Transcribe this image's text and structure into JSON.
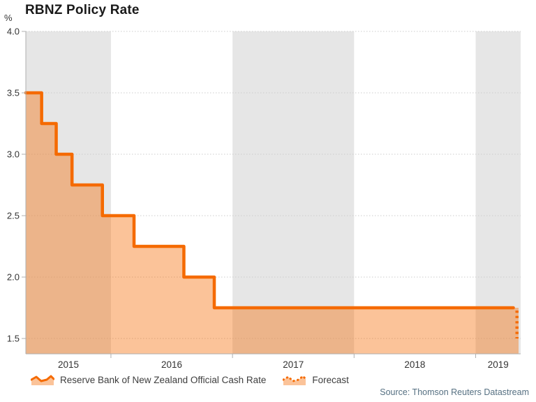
{
  "chart_data": {
    "type": "area",
    "title": "RBNZ Policy Rate",
    "y_unit_label": "%",
    "xlim": [
      2015.3,
      2019.37
    ],
    "ylim": [
      1.375,
      4.0
    ],
    "y_ticks": [
      "4.0",
      "3.5",
      "3.0",
      "2.5",
      "2.0",
      "1.5"
    ],
    "x_ticks": [
      "2015",
      "2016",
      "2017",
      "2018",
      "2019"
    ],
    "shaded_years": [
      2015,
      2017,
      2019
    ],
    "grid": "dotted-horizontal",
    "legend_position": "bottom",
    "series": [
      {
        "name": "Reserve Bank of New Zealand Official Cash Rate",
        "style": "solid-step",
        "points": [
          [
            2015.3,
            3.5
          ],
          [
            2015.43,
            3.25
          ],
          [
            2015.55,
            3.0
          ],
          [
            2015.68,
            2.75
          ],
          [
            2015.93,
            2.5
          ],
          [
            2016.19,
            2.25
          ],
          [
            2016.6,
            2.0
          ],
          [
            2016.85,
            1.75
          ],
          [
            2019.31,
            1.75
          ]
        ]
      },
      {
        "name": "Forecast",
        "style": "dotted-step",
        "points": [
          [
            2019.31,
            1.75
          ],
          [
            2019.34,
            1.5
          ]
        ]
      }
    ],
    "colors": {
      "line": "#F56A00",
      "fill": "rgba(245,106,0,0.40)",
      "band": "#E6E6E6",
      "grid": "#CCCCCC",
      "axis": "#AFAFAF",
      "tick_label": "#333333"
    }
  },
  "footer": {
    "source": "Source: Thomson Reuters Datastream",
    "source_color": "#567082"
  }
}
